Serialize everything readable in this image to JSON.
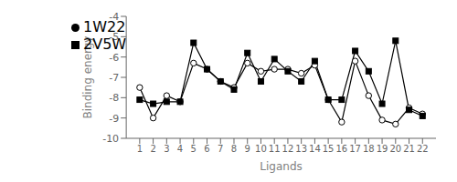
{
  "chart_data": {
    "type": "line",
    "x": [
      1,
      2,
      3,
      4,
      5,
      6,
      7,
      8,
      9,
      10,
      11,
      12,
      13,
      14,
      15,
      16,
      17,
      18,
      19,
      20,
      21,
      22
    ],
    "xlabel": "Ligands",
    "ylabel": "Binding energy",
    "series": [
      {
        "name": "1W22",
        "color": "#000000",
        "marker": "circle",
        "line_style": "solid",
        "values": [
          -7.5,
          -9.0,
          -7.9,
          -8.2,
          -6.3,
          -6.6,
          -7.2,
          -7.5,
          -6.3,
          -6.7,
          -6.6,
          -6.6,
          -6.8,
          -6.4,
          -8.1,
          -9.2,
          -6.2,
          -7.9,
          -9.1,
          -9.3,
          -8.5,
          -8.8
        ]
      },
      {
        "name": "2V5W",
        "color": "#000000",
        "marker": "square",
        "line_style": "solid",
        "values": [
          -8.1,
          -8.3,
          -8.2,
          -8.2,
          -5.3,
          -6.6,
          -7.2,
          -7.6,
          -5.8,
          -7.2,
          -6.1,
          -6.7,
          -7.2,
          -6.2,
          -8.1,
          -8.1,
          -5.7,
          -6.7,
          -8.3,
          -5.2,
          -8.6,
          -8.9
        ]
      }
    ],
    "xlim": [
      0,
      23
    ],
    "xticks": [
      1,
      2,
      3,
      4,
      5,
      6,
      7,
      8,
      9,
      10,
      11,
      12,
      13,
      14,
      15,
      16,
      17,
      18,
      19,
      20,
      21,
      22
    ],
    "ylim": [
      -10,
      -4
    ],
    "yticks": [
      -10,
      -9,
      -8,
      -7,
      -6,
      -5,
      -4
    ],
    "legend": "upper left",
    "grid": false
  }
}
